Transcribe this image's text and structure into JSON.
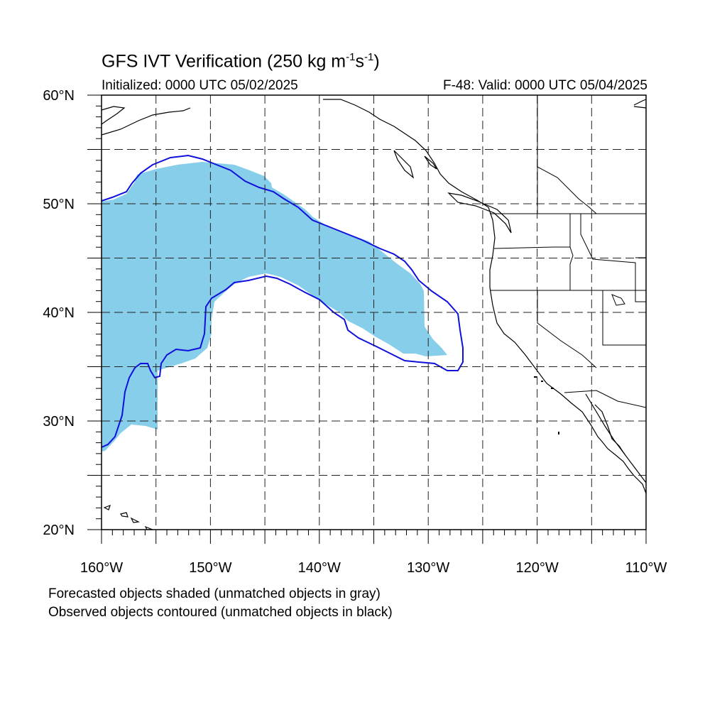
{
  "title": {
    "main": "GFS IVT Verification (250 kg m",
    "sup1": "-1",
    "mid": "s",
    "sup2": "-1",
    "end": ")"
  },
  "subtitle": {
    "initialized": "Initialized: 0000 UTC 05/02/2025",
    "valid": "F-48: Valid: 0000 UTC 05/04/2025"
  },
  "map": {
    "lat_range": [
      20,
      60
    ],
    "lon_range": [
      -160,
      -110
    ],
    "grid_lat_step": 5,
    "grid_lon_step": 5,
    "lat_labels": [
      "20°N",
      "30°N",
      "40°N",
      "50°N",
      "60°N"
    ],
    "lon_labels": [
      "160°W",
      "150°W",
      "140°W",
      "130°W",
      "120°W",
      "110°W"
    ],
    "colors": {
      "forecast_shade": "#87ceeb",
      "observed_contour": "#1010dd",
      "coast": "#000000",
      "grid": "#222222"
    }
  },
  "notes": {
    "line1": "Forecasted objects shaded (unmatched objects in gray)",
    "line2": "Observed objects contoured (unmatched objects in black)"
  }
}
